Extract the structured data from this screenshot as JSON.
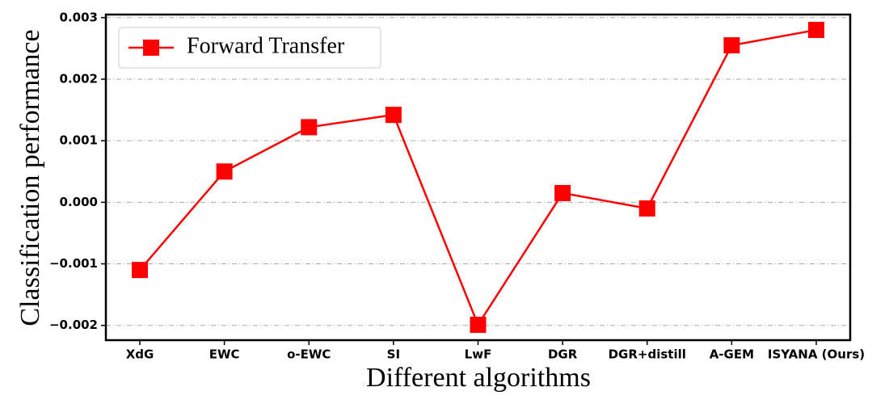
{
  "chart_data": {
    "type": "line",
    "x_label": "Different algorithms",
    "y_label": "Classification performance",
    "categories": [
      "XdG",
      "EWC",
      "o-EWC",
      "SI",
      "LwF",
      "DGR",
      "DGR+distill",
      "A-GEM",
      "ISYANA (Ours)"
    ],
    "series": [
      {
        "name": "Forward Transfer",
        "color": "#ff0000",
        "values": [
          -0.0011,
          0.0005,
          0.00122,
          0.00142,
          -0.00199,
          0.00015,
          -0.0001,
          0.00255,
          0.0028
        ]
      }
    ],
    "ylim": [
      -0.00224,
      0.00305
    ],
    "yticks": [
      {
        "value": -0.002,
        "label": "−0.002"
      },
      {
        "value": -0.001,
        "label": "−0.001"
      },
      {
        "value": 0,
        "label": "0.000"
      },
      0.001,
      0.002,
      0.003
    ],
    "grid": true,
    "legend": "upper left"
  }
}
